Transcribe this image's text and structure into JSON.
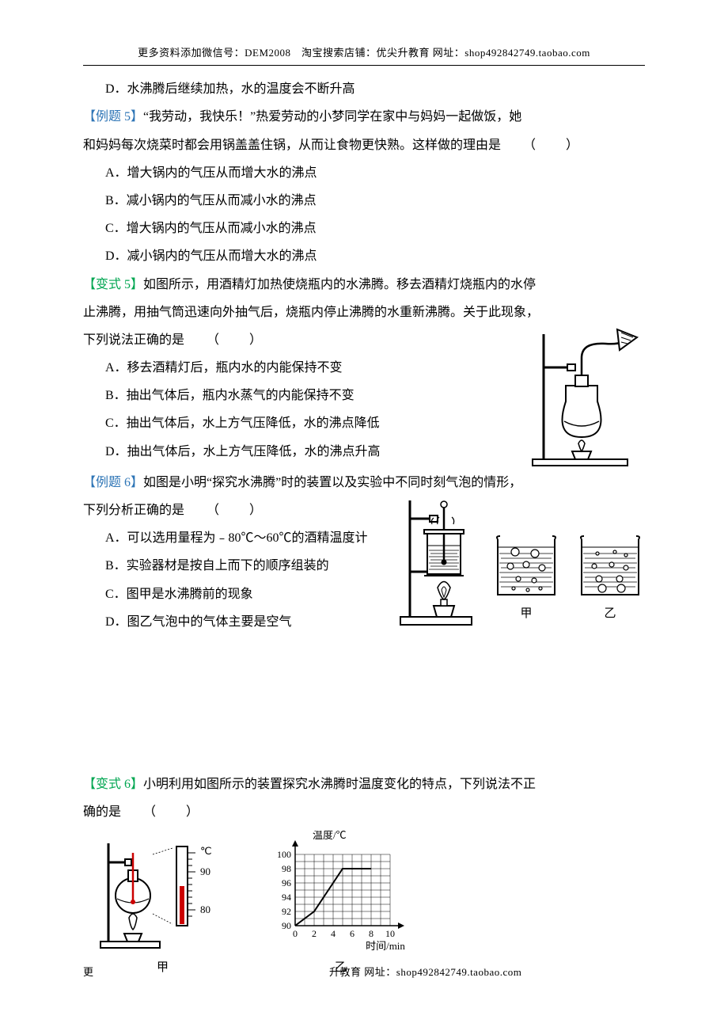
{
  "header": "更多资料添加微信号：DEM2008　淘宝搜索店铺：优尖升教育  网址：shop492842749.taobao.com",
  "footer_left": "更",
  "footer_right": "升教育  网址：shop492842749.taobao.com",
  "line_d_prev": "D．水沸腾后继续加热，水的温度会不断升高",
  "ex5_tag": "【例题 5】",
  "ex5_text_a": "“我劳动，我快乐！”热爱劳动的小梦同学在家中与妈妈一起做饭，她",
  "ex5_text_b": "和妈妈每次烧菜时都会用锅盖盖住锅，从而让食物更快熟。这样做的理由是",
  "ex5_blank": "（　　）",
  "ex5_a": "A．增大锅内的气压从而增大水的沸点",
  "ex5_b": "B．减小锅内的气压从而减小水的沸点",
  "ex5_c": "C．增大锅内的气压从而减小水的沸点",
  "ex5_d": "D．减小锅内的气压从而增大水的沸点",
  "var5_tag": "【变式 5】",
  "var5_text_a": "如图所示，用酒精灯加热使烧瓶内的水沸腾。移去酒精灯烧瓶内的水停",
  "var5_text_b": "止沸腾，用抽气筒迅速向外抽气后，烧瓶内停止沸腾的水重新沸腾。关于此现象，",
  "var5_text_c": "下列说法正确的是",
  "var5_blank": "（　　）",
  "var5_a": "A．移去酒精灯后，瓶内水的内能保持不变",
  "var5_b": "B．抽出气体后，瓶内水蒸气的内能保持不变",
  "var5_c": "C．抽出气体后，水上方气压降低，水的沸点降低",
  "var5_d": "D．抽出气体后，水上方气压降低，水的沸点升高",
  "ex6_tag": "【例题 6】",
  "ex6_text_a": "如图是小明“探究水沸腾”时的装置以及实验中不同时刻气泡的情形，",
  "ex6_text_b": "下列分析正确的是",
  "ex6_blank": "（　　）",
  "ex6_a": "A．可以选用量程为﹣80℃～60℃的酒精温度计",
  "ex6_b": "B．实验器材是按自上而下的顺序组装的",
  "ex6_c": "C．图甲是水沸腾前的现象",
  "ex6_d": "D．图乙气泡中的气体主要是空气",
  "cap_jia": "甲",
  "cap_yi": "乙",
  "var6_tag": "【变式 6】",
  "var6_text_a": "小明利用如图所示的装置探究水沸腾时温度变化的特点，下列说法不正",
  "var6_text_b": "确的是",
  "var6_blank": "（　　）",
  "chart": {
    "y_label": "温度/℃",
    "x_label": "时间/min",
    "y_ticks": [
      "100",
      "98",
      "96",
      "94",
      "92",
      "90"
    ],
    "x_ticks": [
      "0",
      "2",
      "4",
      "6",
      "8",
      "10"
    ],
    "line_points": [
      [
        0,
        90
      ],
      [
        1,
        91
      ],
      [
        2,
        92
      ],
      [
        3,
        94
      ],
      [
        4,
        96
      ],
      [
        5,
        98
      ],
      [
        6,
        98
      ],
      [
        7,
        98
      ],
      [
        8,
        98
      ]
    ],
    "grid_color": "#000",
    "line_color": "#000"
  },
  "therm_unit": "℃",
  "therm_90": "90",
  "therm_80": "80"
}
